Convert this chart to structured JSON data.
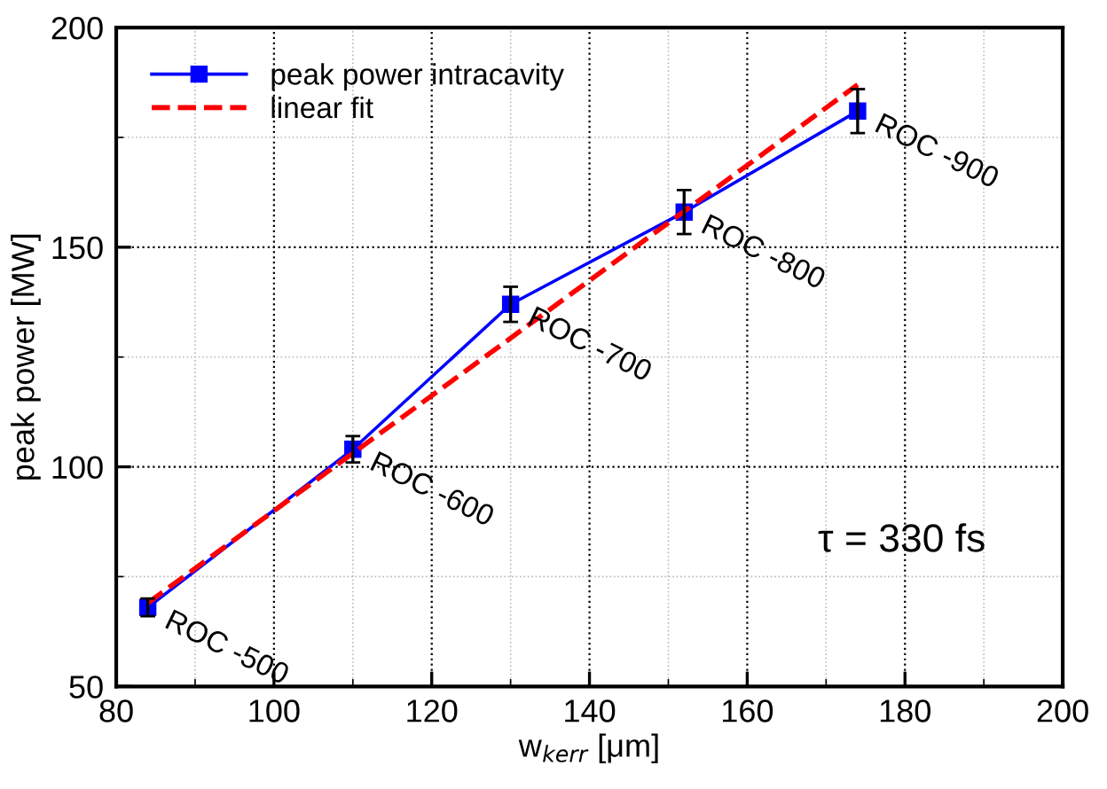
{
  "chart_data": {
    "type": "line",
    "xlabel": "w$_{kerr}$ [μm]",
    "ylabel": "peak power [MW]",
    "xlim": [
      80,
      200
    ],
    "ylim": [
      50,
      200
    ],
    "xticks": [
      80,
      100,
      120,
      140,
      160,
      180,
      200
    ],
    "yticks": [
      50,
      100,
      150,
      200
    ],
    "grid": true,
    "legend": "top left",
    "series": [
      {
        "name": "peak power intracavity",
        "color": "#0000ff",
        "marker": "square",
        "line_style": "solid",
        "x": [
          84,
          110,
          130,
          152,
          174
        ],
        "values": [
          68,
          104,
          137,
          158,
          181
        ],
        "errors": [
          2,
          3,
          4,
          5,
          5
        ]
      },
      {
        "name": "linear fit",
        "color": "#ff0000",
        "marker": "none",
        "line_style": "dashed",
        "x": [
          84,
          174
        ],
        "values": [
          69,
          187
        ]
      }
    ],
    "annotations": [
      {
        "text": "ROC -500",
        "x": 84,
        "y": 68
      },
      {
        "text": "ROC -600",
        "x": 110,
        "y": 104
      },
      {
        "text": "ROC -700",
        "x": 130,
        "y": 137
      },
      {
        "text": "ROC -800",
        "x": 152,
        "y": 158
      },
      {
        "text": "ROC -900",
        "x": 174,
        "y": 181
      },
      "τ = 330 fs"
    ]
  }
}
